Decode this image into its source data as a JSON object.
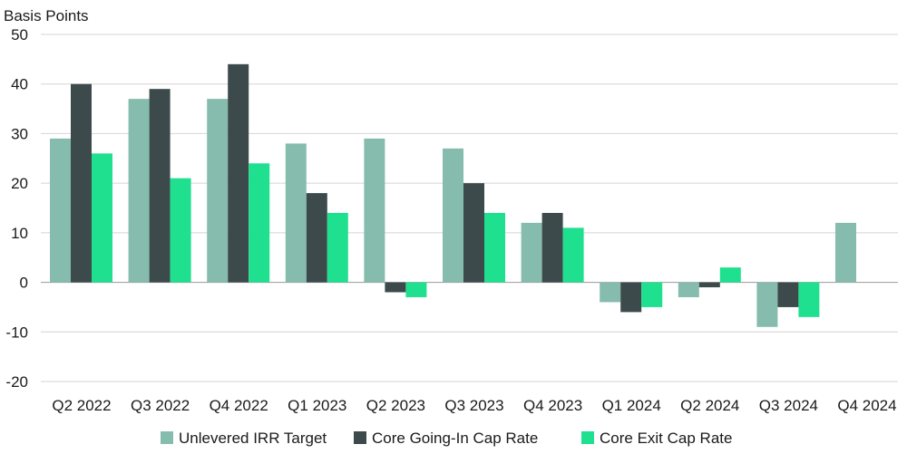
{
  "chart_data": {
    "type": "bar",
    "ylabel": "Basis Points",
    "ylim": [
      -20,
      50
    ],
    "yticks": [
      50,
      40,
      30,
      20,
      10,
      0,
      -10,
      -20
    ],
    "grid": true,
    "legend_position": "bottom",
    "categories": [
      "Q2 2022",
      "Q3 2022",
      "Q4 2022",
      "Q1 2023",
      "Q2 2023",
      "Q3 2023",
      "Q4 2023",
      "Q1 2024",
      "Q2 2024",
      "Q3 2024",
      "Q4 2024"
    ],
    "series": [
      {
        "name": "Unlevered IRR Target",
        "color": "#86bcae",
        "values": [
          29,
          37,
          37,
          28,
          29,
          27,
          12,
          -4,
          -3,
          -9,
          12
        ]
      },
      {
        "name": "Core Going-In Cap Rate",
        "color": "#3d4a4c",
        "values": [
          40,
          39,
          44,
          18,
          -2,
          20,
          14,
          -6,
          -1,
          -5,
          null
        ]
      },
      {
        "name": "Core Exit Cap Rate",
        "color": "#1fe08f",
        "values": [
          26,
          21,
          24,
          14,
          -3,
          14,
          11,
          -5,
          3,
          -7,
          null
        ]
      }
    ]
  }
}
